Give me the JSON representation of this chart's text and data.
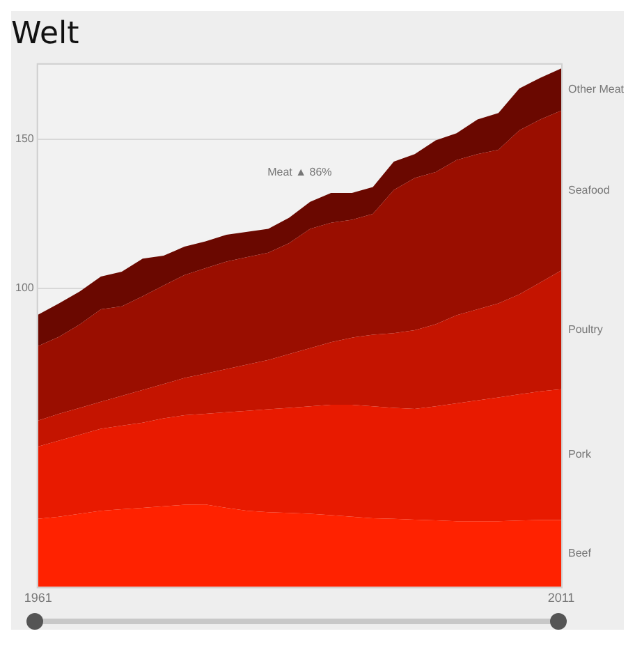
{
  "chart_data": {
    "type": "area",
    "title": "Welt",
    "stacked": true,
    "x": [
      1961,
      1963,
      1965,
      1967,
      1969,
      1971,
      1973,
      1975,
      1977,
      1979,
      1981,
      1983,
      1985,
      1987,
      1989,
      1991,
      1993,
      1995,
      1997,
      1999,
      2001,
      2003,
      2005,
      2007,
      2009,
      2011
    ],
    "series": [
      {
        "name": "Beef",
        "color": "#ff2200",
        "values": [
          22.8,
          23.5,
          24.5,
          25.5,
          26,
          26.5,
          27,
          27.5,
          27.6,
          26.5,
          25.5,
          25,
          24.8,
          24.5,
          24,
          23.5,
          23,
          22.8,
          22.5,
          22.3,
          22,
          22,
          22,
          22.2,
          22.4,
          22.4
        ]
      },
      {
        "name": "Pork",
        "color": "#e81a00",
        "values": [
          24.2,
          25.5,
          26.5,
          27.5,
          28,
          28.5,
          29.5,
          30,
          30.4,
          32,
          33.5,
          34.5,
          35.2,
          36,
          37,
          37.5,
          37.5,
          37.2,
          37.1,
          38.2,
          39.5,
          40.5,
          41.5,
          42.3,
          43.1,
          43.8
        ]
      },
      {
        "name": "Poultry",
        "color": "#c41400",
        "values": [
          8.7,
          9,
          9,
          9,
          10,
          11,
          11.5,
          12.5,
          13.5,
          14.5,
          15.5,
          16.5,
          18,
          19.5,
          21,
          22.5,
          24,
          25,
          26.4,
          27.5,
          29.5,
          30.5,
          31.5,
          33.5,
          36.5,
          39.8
        ]
      },
      {
        "name": "Seafood",
        "color": "#9a0e00",
        "values": [
          25,
          25.8,
          28,
          31,
          30,
          31.4,
          33,
          34.5,
          35.3,
          36,
          36,
          36,
          37.2,
          40,
          40,
          39.5,
          40.5,
          48,
          51,
          51,
          52,
          52,
          51.5,
          55,
          54.6,
          53.6
        ]
      },
      {
        "name": "Other Meat",
        "color": "#6a0800",
        "values": [
          10.5,
          11.2,
          11,
          11,
          11.6,
          12.6,
          10,
          9.5,
          9,
          9,
          8.5,
          8,
          8.5,
          9,
          10,
          9,
          9,
          9.5,
          8,
          10.6,
          9,
          11.6,
          12.3,
          14,
          14,
          14.1
        ]
      }
    ],
    "xlim": [
      1961,
      2011
    ],
    "xticks": [
      1961,
      2011
    ],
    "ylim": [
      0,
      175
    ],
    "yticks": [
      100,
      150
    ],
    "grid": "y",
    "annotations": [
      "Meat ▲ 86%"
    ]
  }
}
